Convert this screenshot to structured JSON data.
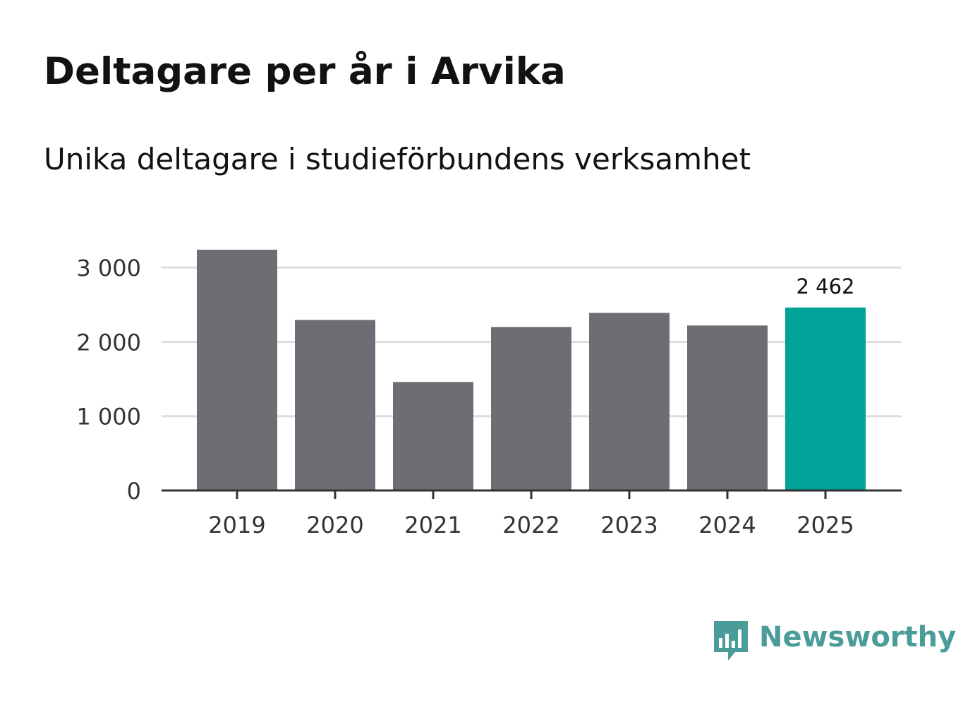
{
  "header": {
    "title": "Deltagare per år i Arvika",
    "subtitle": "Unika deltagare i studieförbundens verksamhet"
  },
  "chart_data": {
    "type": "bar",
    "title": "Deltagare per år i Arvika",
    "subtitle": "Unika deltagare i studieförbundens verksamhet",
    "xlabel": "",
    "ylabel": "",
    "categories": [
      "2019",
      "2020",
      "2021",
      "2022",
      "2023",
      "2024",
      "2025"
    ],
    "values": [
      3240,
      2295,
      1460,
      2200,
      2390,
      2220,
      2462
    ],
    "highlight_index": 6,
    "data_labels": [
      {
        "index": 6,
        "text": "2 462"
      }
    ],
    "ylim": [
      0,
      3300
    ],
    "yticks": [
      0,
      1000,
      2000,
      3000
    ],
    "ytick_labels": [
      "0",
      "1 000",
      "2 000",
      "3 000"
    ],
    "grid": true,
    "legend": "none",
    "colors": {
      "bar": "#6e6d73",
      "highlight": "#00a398",
      "grid": "#dddddd",
      "axis": "#333333"
    }
  },
  "branding": {
    "logo_text": "Newsworthy",
    "logo_icon": "bar-chart-speech-bubble-icon",
    "logo_color": "#4a9c98"
  }
}
